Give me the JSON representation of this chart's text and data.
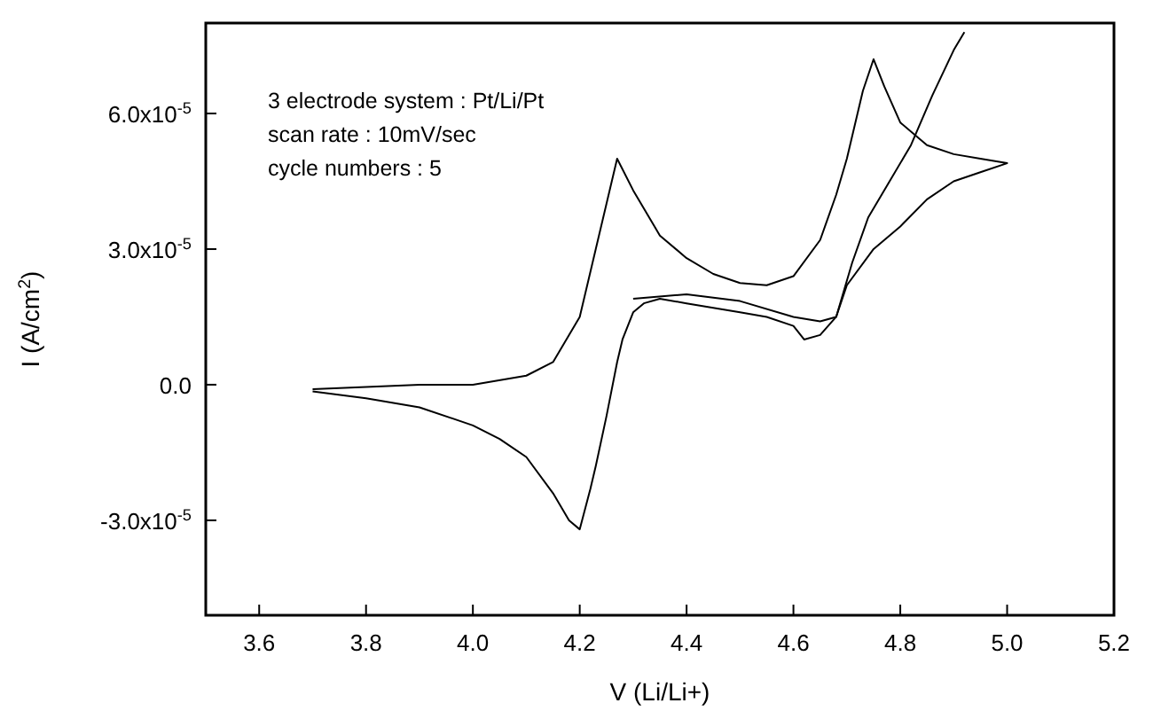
{
  "chart_data": {
    "type": "line",
    "xlabel": "V (Li/Li+)",
    "ylabel": "I (A/cm$^{2}$)",
    "xlim": [
      3.5,
      5.2
    ],
    "xticks": [
      {
        "value": 3.6,
        "label": "3.6"
      },
      {
        "value": 3.8,
        "label": "3.8"
      },
      {
        "value": 4.0,
        "label": "4.0"
      },
      {
        "value": 4.2,
        "label": "4.2"
      },
      {
        "value": 4.4,
        "label": "4.4"
      },
      {
        "value": 4.6,
        "label": "4.6"
      },
      {
        "value": 4.8,
        "label": "4.8"
      },
      {
        "value": 5.0,
        "label": "5.0"
      },
      {
        "value": 5.2,
        "label": "5.2"
      }
    ],
    "ylim": [
      -5.1e-05,
      8e-05
    ],
    "yticks": [
      {
        "value": -3e-05,
        "label": "-3.0x10$^{-5}$"
      },
      {
        "value": 0,
        "label": "0.0"
      },
      {
        "value": 3e-05,
        "label": "3.0x10$^{-5}$"
      },
      {
        "value": 6e-05,
        "label": "6.0x10$^{-5}$"
      }
    ],
    "grid": false,
    "marker": "none",
    "line_style": "solid",
    "annotations": [
      "3 electrode system : Pt/Li/Pt",
      "scan rate : 10mV/sec",
      "cycle numbers : 5"
    ],
    "series": [
      {
        "color": "#000000",
        "x": [
          3.7,
          3.8,
          3.9,
          4.0,
          4.1,
          4.15,
          4.2,
          4.23,
          4.25,
          4.27,
          4.3,
          4.35,
          4.4,
          4.45,
          4.5,
          4.55,
          4.6,
          4.65,
          4.68,
          4.7,
          4.73,
          4.75,
          4.77,
          4.8,
          4.85,
          4.9,
          4.95,
          5.0,
          4.95,
          4.9,
          4.85,
          4.8,
          4.75,
          4.7,
          4.68,
          4.65,
          4.62,
          4.6,
          4.55,
          4.5,
          4.45,
          4.4,
          4.35,
          4.32,
          4.3,
          4.28,
          4.27,
          4.25,
          4.23,
          4.22,
          4.2,
          4.18,
          4.15,
          4.1,
          4.05,
          4.0,
          3.9,
          3.8,
          3.7
        ],
        "values": [
          -1e-06,
          -5e-07,
          0,
          0,
          2e-06,
          5e-06,
          1.5e-05,
          3e-05,
          4e-05,
          5e-05,
          4.3e-05,
          3.3e-05,
          2.8e-05,
          2.45e-05,
          2.25e-05,
          2.2e-05,
          2.4e-05,
          3.2e-05,
          4.2e-05,
          5e-05,
          6.5e-05,
          7.2e-05,
          6.6e-05,
          5.8e-05,
          5.3e-05,
          5.1e-05,
          5e-05,
          4.9e-05,
          4.7e-05,
          4.5e-05,
          4.1e-05,
          3.5e-05,
          3e-05,
          2.2e-05,
          1.5e-05,
          1.1e-05,
          1e-05,
          1.3e-05,
          1.5e-05,
          1.6e-05,
          1.7e-05,
          1.8e-05,
          1.9e-05,
          1.8e-05,
          1.6e-05,
          1e-05,
          5e-06,
          -7e-06,
          -1.8e-05,
          -2.3e-05,
          -3.2e-05,
          -3e-05,
          -2.4e-05,
          -1.6e-05,
          -1.2e-05,
          -9e-06,
          -5e-06,
          -3e-06,
          -1.5e-06
        ]
      },
      {
        "color": "#000000",
        "x": [
          4.3,
          4.4,
          4.5,
          4.6,
          4.65,
          4.68,
          4.71,
          4.74,
          4.78,
          4.82,
          4.86,
          4.9,
          4.92
        ],
        "values": [
          1.9e-05,
          2e-05,
          1.85e-05,
          1.5e-05,
          1.4e-05,
          1.5e-05,
          2.7e-05,
          3.7e-05,
          4.5e-05,
          5.3e-05,
          6.4e-05,
          7.4e-05,
          7.8e-05
        ]
      }
    ]
  }
}
